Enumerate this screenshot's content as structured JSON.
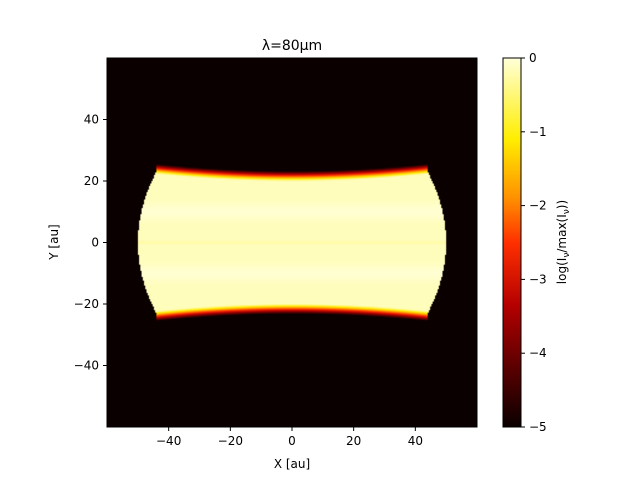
{
  "chart_data": {
    "type": "heatmap",
    "title": "λ=80μm",
    "xlabel": "X [au]",
    "ylabel": "Y [au]",
    "xlim": [
      -60,
      60
    ],
    "ylim": [
      -60,
      60
    ],
    "xticks": [
      -40,
      -20,
      0,
      20,
      40
    ],
    "xtick_labels": [
      "−40",
      "−20",
      "0",
      "20",
      "40"
    ],
    "yticks": [
      -40,
      -20,
      0,
      20,
      40
    ],
    "ytick_labels": [
      "−40",
      "−20",
      "0",
      "20",
      "40"
    ],
    "colorbar": {
      "label": "log(I_ν/max(I_ν))",
      "label_parts": [
        "log(I",
        "ν",
        "/max(I",
        "ν",
        "))"
      ],
      "range": [
        -5,
        0
      ],
      "ticks": [
        0,
        -1,
        -2,
        -3,
        -4,
        -5
      ],
      "tick_labels": [
        "0",
        "−1",
        "−2",
        "−3",
        "−4",
        "−5"
      ],
      "colormap": "afmhot",
      "colors": [
        "#0a0000",
        "#5a0000",
        "#b40000",
        "#ff3000",
        "#ff9000",
        "#ffee00",
        "#ffffd8"
      ]
    },
    "emission_region": {
      "shape": "edge-on disk with curved outer edge",
      "x_half_width_center": 50,
      "x_half_width_edge": 44,
      "y_half_height_center": 20,
      "y_half_height_edge": 23,
      "core_value": -0.15,
      "dark_stripe_y": 0,
      "bright_bands_y": [
        10,
        -10
      ]
    },
    "grid": false,
    "legend": "none"
  }
}
